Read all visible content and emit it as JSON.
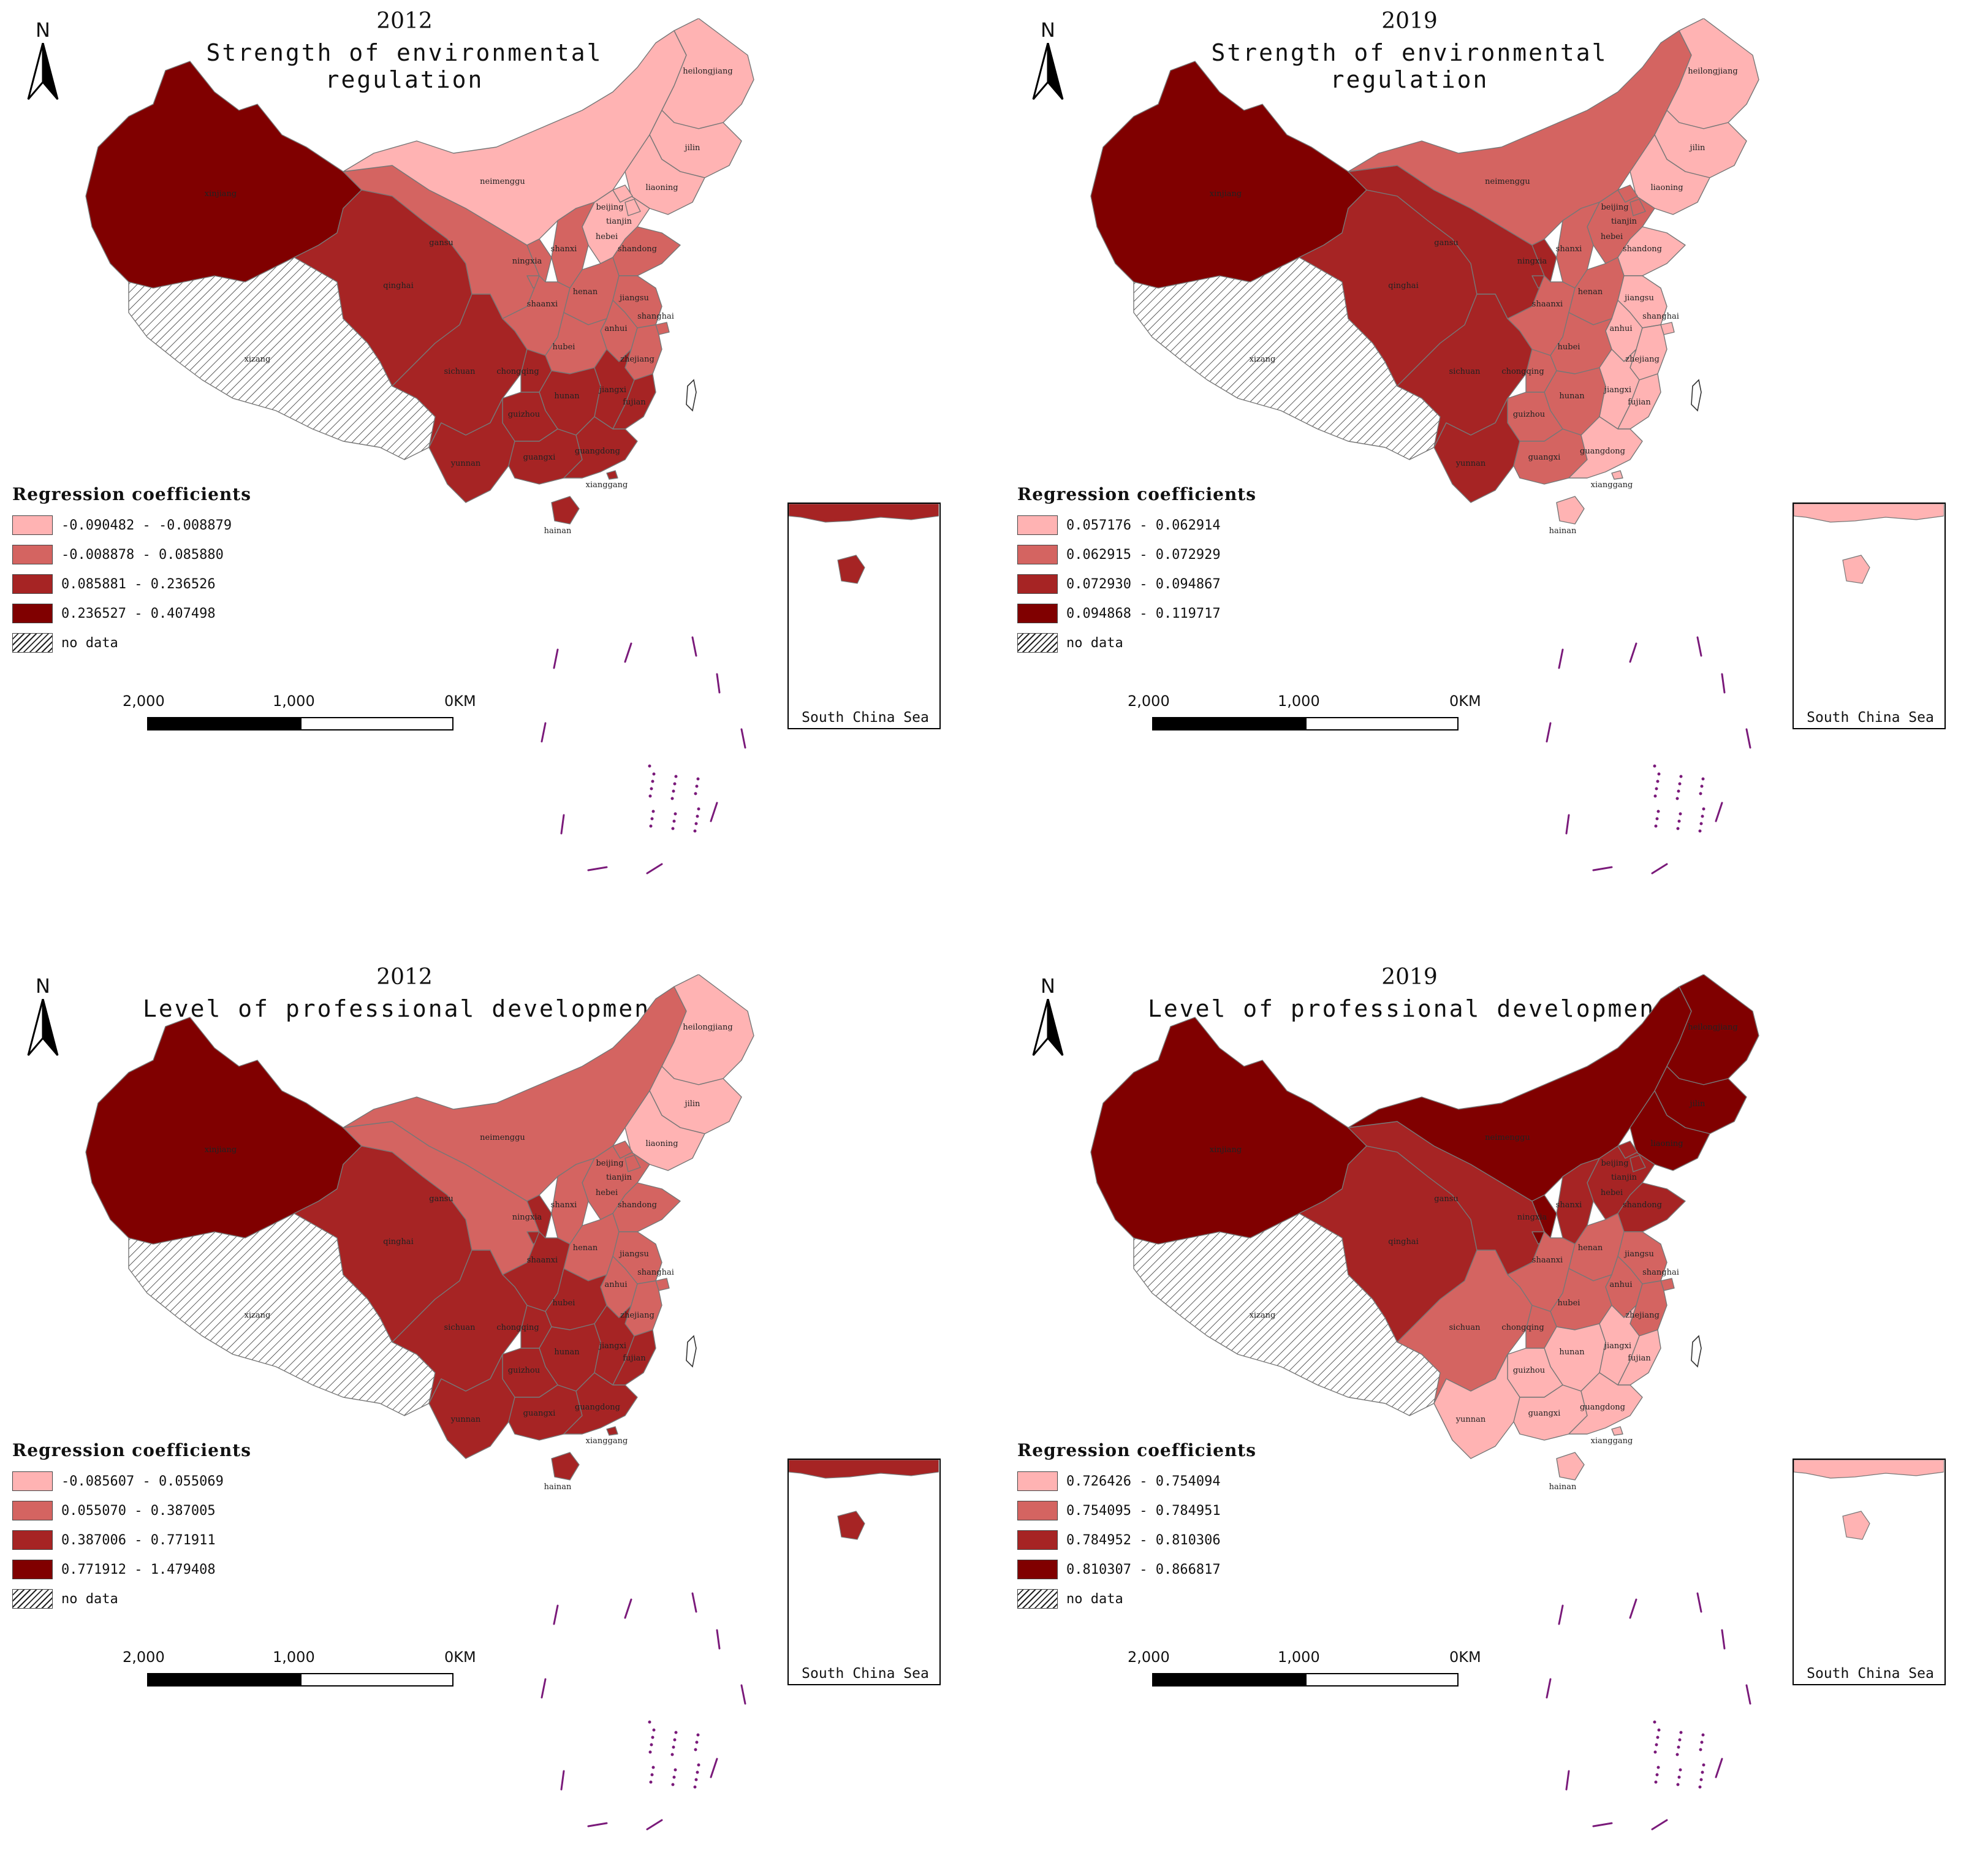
{
  "map_common": {
    "north_label": "N",
    "legend_title": "Regression coefficients",
    "no_data_label": "no data",
    "inset_label": "South China Sea",
    "scale_labels": [
      "2,000",
      "1,000",
      "0KM"
    ]
  },
  "legend_colors": [
    "#ffb3b3",
    "#d46461",
    "#a62424",
    "#800000"
  ],
  "provinces": {
    "xinjiang": "xinjiang",
    "xizang": "xizang",
    "qinghai": "qinghai",
    "gansu": "gansu",
    "neimenggu": "neimenggu",
    "heilongjiang": "heilongjiang",
    "jilin": "jilin",
    "liaoning": "liaoning",
    "beijing": "beijing",
    "tianjin": "tianjin",
    "hebei": "hebei",
    "shanxi": "shanxi",
    "shandong": "shandong",
    "ningxia": "ningxia",
    "shaanxi": "shaanxi",
    "henan": "henan",
    "jiangsu": "jiangsu",
    "anhui": "anhui",
    "shanghai": "shanghai",
    "hubei": "hubei",
    "sichuan": "sichuan",
    "chongqing": "chongqing",
    "zhejiang": "zhejiang",
    "hunan": "hunan",
    "jiangxi": "jiangxi",
    "fujian": "fujian",
    "guizhou": "guizhou",
    "yunnan": "yunnan",
    "guangxi": "guangxi",
    "guangdong": "guangdong",
    "xianggang": "xianggang",
    "hainan": "hainan"
  },
  "panels": [
    {
      "year": "2012",
      "variable": "Strength of environmental regulation",
      "legend": [
        "-0.090482 - -0.008879",
        "-0.008878 - 0.085880",
        "0.085881 - 0.236526",
        "0.236527 - 0.407498"
      ],
      "classes": {
        "xinjiang": 4,
        "qinghai": 3,
        "gansu": 2,
        "neimenggu": 1,
        "heilongjiang": 1,
        "jilin": 1,
        "liaoning": 1,
        "beijing": 1,
        "tianjin": 1,
        "hebei": 1,
        "shanxi": 2,
        "shandong": 2,
        "ningxia": 2,
        "shaanxi": 2,
        "henan": 2,
        "jiangsu": 2,
        "anhui": 2,
        "shanghai": 2,
        "hubei": 2,
        "sichuan": 3,
        "chongqing": 3,
        "zhejiang": 2,
        "hunan": 3,
        "jiangxi": 3,
        "fujian": 3,
        "guizhou": 3,
        "yunnan": 3,
        "guangxi": 3,
        "guangdong": 3,
        "xianggang": 3,
        "hainan": 3
      }
    },
    {
      "year": "2019",
      "variable": "Strength of environmental regulation",
      "legend": [
        "0.057176 - 0.062914",
        "0.062915 - 0.072929",
        "0.072930 - 0.094867",
        "0.094868 - 0.119717"
      ],
      "classes": {
        "xinjiang": 4,
        "qinghai": 3,
        "gansu": 3,
        "neimenggu": 2,
        "heilongjiang": 1,
        "jilin": 1,
        "liaoning": 1,
        "beijing": 2,
        "tianjin": 2,
        "hebei": 2,
        "shanxi": 2,
        "shandong": 1,
        "ningxia": 3,
        "shaanxi": 2,
        "henan": 2,
        "jiangsu": 1,
        "anhui": 1,
        "shanghai": 1,
        "hubei": 2,
        "sichuan": 3,
        "chongqing": 2,
        "zhejiang": 1,
        "hunan": 2,
        "jiangxi": 1,
        "fujian": 1,
        "guizhou": 2,
        "yunnan": 3,
        "guangxi": 2,
        "guangdong": 1,
        "xianggang": 1,
        "hainan": 1
      }
    },
    {
      "year": "2012",
      "variable": "Level of professional development",
      "legend": [
        "-0.085607 - 0.055069",
        "0.055070 - 0.387005",
        "0.387006 - 0.771911",
        "0.771912 - 1.479408"
      ],
      "classes": {
        "xinjiang": 4,
        "qinghai": 3,
        "gansu": 2,
        "neimenggu": 2,
        "heilongjiang": 1,
        "jilin": 1,
        "liaoning": 1,
        "beijing": 2,
        "tianjin": 2,
        "hebei": 2,
        "shanxi": 2,
        "shandong": 2,
        "ningxia": 3,
        "shaanxi": 3,
        "henan": 2,
        "jiangsu": 2,
        "anhui": 2,
        "shanghai": 2,
        "hubei": 3,
        "sichuan": 3,
        "chongqing": 3,
        "zhejiang": 2,
        "hunan": 3,
        "jiangxi": 3,
        "fujian": 3,
        "guizhou": 3,
        "yunnan": 3,
        "guangxi": 3,
        "guangdong": 3,
        "xianggang": 3,
        "hainan": 3
      }
    },
    {
      "year": "2019",
      "variable": "Level of professional development",
      "legend": [
        "0.726426 - 0.754094",
        "0.754095 - 0.784951",
        "0.784952 - 0.810306",
        "0.810307 - 0.866817"
      ],
      "classes": {
        "xinjiang": 4,
        "qinghai": 3,
        "gansu": 3,
        "neimenggu": 4,
        "heilongjiang": 4,
        "jilin": 4,
        "liaoning": 4,
        "beijing": 3,
        "tianjin": 3,
        "hebei": 3,
        "shanxi": 3,
        "shandong": 3,
        "ningxia": 4,
        "shaanxi": 2,
        "henan": 2,
        "jiangsu": 2,
        "anhui": 2,
        "shanghai": 2,
        "hubei": 2,
        "sichuan": 2,
        "chongqing": 2,
        "zhejiang": 2,
        "hunan": 1,
        "jiangxi": 1,
        "fujian": 1,
        "guizhou": 1,
        "yunnan": 1,
        "guangxi": 1,
        "guangdong": 1,
        "xianggang": 1,
        "hainan": 1
      }
    }
  ]
}
